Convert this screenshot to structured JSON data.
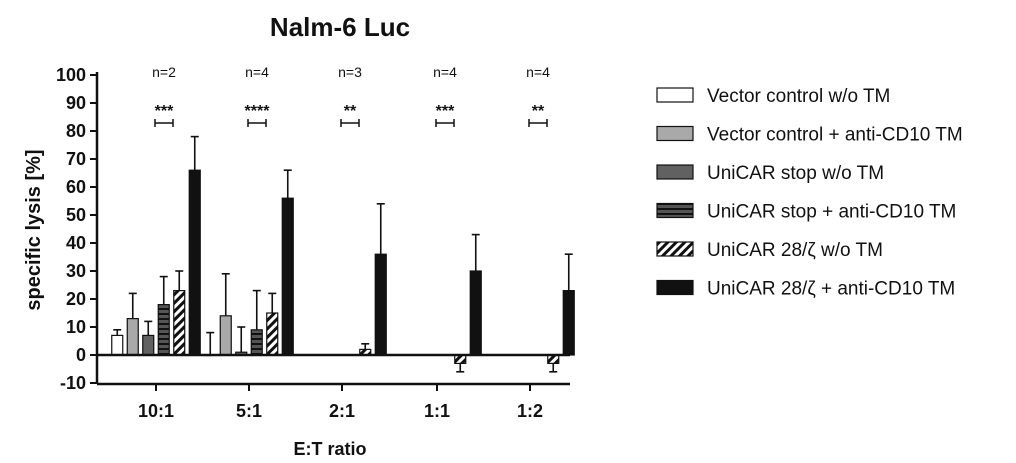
{
  "chart_data": {
    "type": "bar",
    "title": "Nalm-6 Luc",
    "xlabel": "E:T ratio",
    "ylabel": "specific lysis [%]",
    "ylim": [
      -10,
      100
    ],
    "yticks": [
      -10,
      0,
      10,
      20,
      30,
      40,
      50,
      60,
      70,
      80,
      90,
      100
    ],
    "categories": [
      "10:1",
      "5:1",
      "2:1",
      "1:1",
      "1:2"
    ],
    "n_labels": [
      "n=2",
      "n=4",
      "n=3",
      "n=4",
      "n=4"
    ],
    "significance": [
      "***",
      "****",
      "**",
      "***",
      "**"
    ],
    "legend_position": "right",
    "grid": false,
    "series": [
      {
        "name": "Vector control w/o TM",
        "pattern": "white",
        "values": [
          7,
          0,
          null,
          null,
          null
        ],
        "errors": [
          2,
          8,
          null,
          null,
          null
        ]
      },
      {
        "name": "Vector control + anti-CD10 TM",
        "pattern": "lightgray",
        "values": [
          13,
          14,
          null,
          null,
          null
        ],
        "errors": [
          9,
          15,
          null,
          null,
          null
        ]
      },
      {
        "name": "UniCAR stop w/o TM",
        "pattern": "darkgray",
        "values": [
          7,
          1,
          null,
          null,
          null
        ],
        "errors": [
          5,
          9,
          null,
          null,
          null
        ]
      },
      {
        "name": "UniCAR stop + anti-CD10 TM",
        "pattern": "hstripe",
        "values": [
          18,
          9,
          null,
          null,
          null
        ],
        "errors": [
          10,
          14,
          null,
          null,
          null
        ]
      },
      {
        "name": "UniCAR 28/ζ w/o TM",
        "pattern": "diag",
        "values": [
          23,
          15,
          2,
          -3,
          -3
        ],
        "errors": [
          7,
          7,
          2,
          3,
          3
        ]
      },
      {
        "name": "UniCAR 28/ζ + anti-CD10 TM",
        "pattern": "black",
        "values": [
          66,
          56,
          36,
          30,
          23
        ],
        "errors": [
          12,
          10,
          18,
          13,
          13
        ]
      }
    ]
  }
}
